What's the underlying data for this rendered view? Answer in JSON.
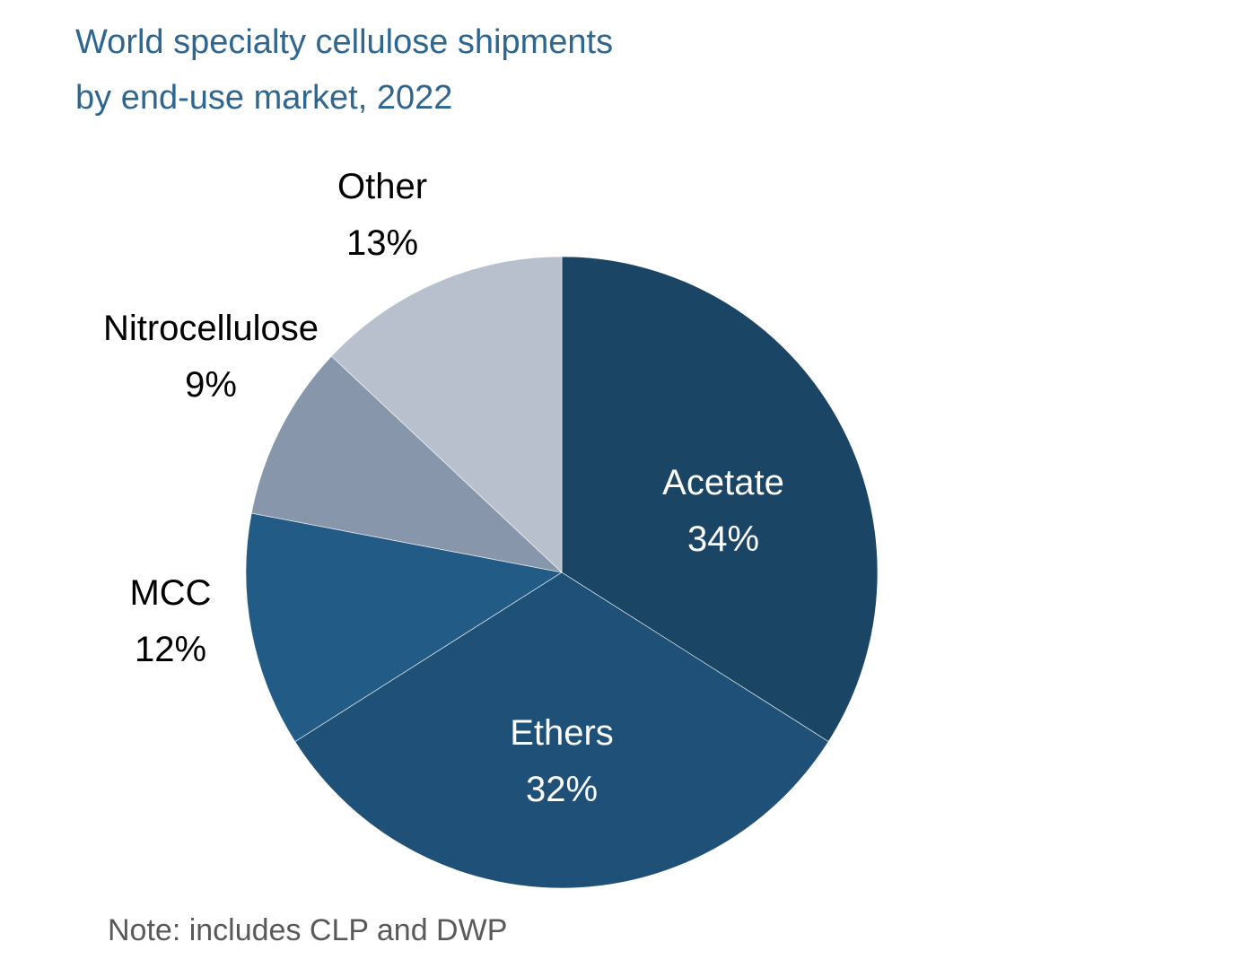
{
  "chart_data": {
    "type": "pie",
    "title": "World specialty cellulose shipments",
    "subtitle": "by end-use market, 2022",
    "slices": [
      {
        "label": "Acetate",
        "value": 34,
        "value_label": "34%",
        "color": "#1a4565",
        "label_color": "#ffffff"
      },
      {
        "label": "Ethers",
        "value": 32,
        "value_label": "32%",
        "color": "#1f5077",
        "label_color": "#ffffff"
      },
      {
        "label": "MCC",
        "value": 12,
        "value_label": "12%",
        "color": "#225c86",
        "label_color": "#000000"
      },
      {
        "label": "Nitrocellulose",
        "value": 9,
        "value_label": "9%",
        "color": "#8796ab",
        "label_color": "#000000"
      },
      {
        "label": "Other",
        "value": 13,
        "value_label": "13%",
        "color": "#b7c0cc",
        "label_color": "#000000"
      }
    ],
    "start": "12 o'clock",
    "direction": "clockwise",
    "note": "Note: includes CLP and DWP"
  }
}
